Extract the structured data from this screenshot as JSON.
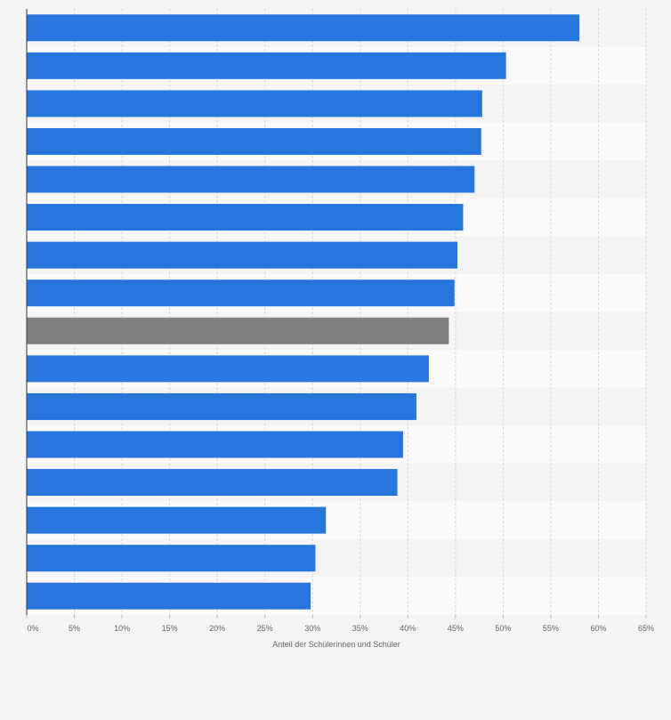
{
  "chart_data": {
    "type": "bar",
    "orientation": "horizontal",
    "values": [
      58.0,
      50.3,
      47.8,
      47.7,
      47.0,
      45.8,
      45.2,
      44.9,
      44.3,
      42.2,
      40.9,
      39.5,
      38.9,
      31.4,
      30.3,
      29.8
    ],
    "highlight_index": 8,
    "xlim": [
      0,
      65
    ],
    "xticks": [
      0,
      5,
      10,
      15,
      20,
      25,
      30,
      35,
      40,
      45,
      50,
      55,
      60,
      65
    ],
    "tick_labels": [
      "0%",
      "5%",
      "10%",
      "15%",
      "20%",
      "25%",
      "30%",
      "35%",
      "40%",
      "45%",
      "50%",
      "55%",
      "60%",
      "65%"
    ],
    "xlabel": "Anteil der Schülerinnen und Schüler",
    "grid": true,
    "colors": {
      "bar": "#2876dd",
      "highlight": "#7f7f7f",
      "band_light": "#fafafa",
      "band_dark": "#f4f4f4",
      "grid": "#d9d9d9",
      "axis": "#333333"
    }
  }
}
